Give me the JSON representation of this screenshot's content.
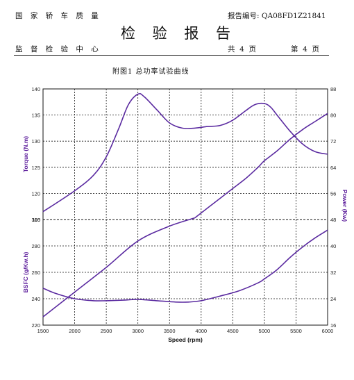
{
  "header": {
    "org": "国 家 轿 车 质 量",
    "report_no_label": "报告编号:",
    "report_no": "QA08FD1Z21841",
    "title": "检 验 报 告",
    "supervision": "监 督 检 验 中 心",
    "page_total": "共  4  页",
    "page_current": "第  4  页"
  },
  "caption": "附图1   总功率试验曲线",
  "colors": {
    "curve": "#5a2aa0",
    "axis_label": "#5a1a9a"
  },
  "chart_data": {
    "type": "line",
    "title": "",
    "xlabel": "Speed (rpm)",
    "x_ticks": [
      "1500",
      "2000",
      "2500",
      "3000",
      "3500",
      "4000",
      "4500",
      "5000",
      "5500",
      "6000"
    ],
    "xlim": [
      1500,
      6000
    ],
    "torque": {
      "ylabel": "Torque (N.m)",
      "ylim": [
        115,
        140
      ],
      "ticks": [
        "140",
        "135",
        "130",
        "125",
        "120",
        "115"
      ],
      "x": [
        1500,
        2000,
        2300,
        2500,
        2700,
        2850,
        3000,
        3100,
        3300,
        3500,
        3700,
        3900,
        4100,
        4300,
        4500,
        4700,
        4850,
        5000,
        5100,
        5200,
        5400,
        5600,
        5800,
        6000
      ],
      "y": [
        116.5,
        120.5,
        123.5,
        127.0,
        132.5,
        137.0,
        139.0,
        138.5,
        136.0,
        133.5,
        132.5,
        132.5,
        132.8,
        133.0,
        134.0,
        135.8,
        137.0,
        137.2,
        136.5,
        135.0,
        132.0,
        129.5,
        128.0,
        127.5
      ]
    },
    "power": {
      "ylabel": "Power (Kw)",
      "ylim": [
        48,
        88
      ],
      "ticks": [
        "88",
        "80",
        "72",
        "64",
        "56",
        "48"
      ],
      "x": [
        3900,
        4100,
        4300,
        4500,
        4700,
        4900,
        5000,
        5200,
        5400,
        5600,
        5800,
        6000
      ],
      "y": [
        48.5,
        51.5,
        54.5,
        57.5,
        60.5,
        64.0,
        66.0,
        69.0,
        72.5,
        75.5,
        78.0,
        80.5
      ]
    },
    "power_lower": {
      "ticks": [
        "48",
        "40",
        "32",
        "24",
        "16"
      ],
      "x": [
        1500,
        2000,
        2500,
        3000,
        3500,
        3900
      ],
      "y": [
        18.5,
        26.0,
        33.5,
        41.5,
        46.0,
        48.5
      ]
    },
    "bsfc": {
      "ylabel": "BSFC (g/Kw.h)",
      "ylim": [
        220,
        300
      ],
      "ticks": [
        "300",
        "280",
        "260",
        "240",
        "220"
      ],
      "x": [
        1500,
        1700,
        2000,
        2300,
        2500,
        2800,
        3000,
        3300,
        3600,
        3800,
        4000,
        4300,
        4600,
        4900,
        5000,
        5200,
        5400,
        5600,
        5800,
        6000
      ],
      "y": [
        248,
        244,
        240,
        238.5,
        238.5,
        239,
        239.5,
        238.5,
        237.5,
        237.5,
        238.5,
        242,
        246,
        252,
        255,
        262,
        271,
        279,
        286,
        292
      ]
    }
  }
}
